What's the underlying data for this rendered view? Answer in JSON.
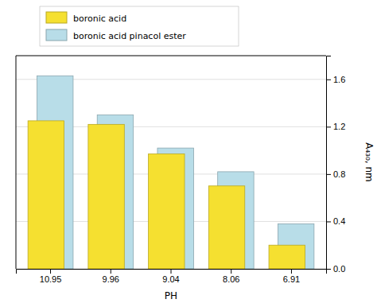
{
  "chart_data": {
    "type": "bar",
    "categories": [
      "10.95",
      "9.96",
      "9.04",
      "8.06",
      "6.91"
    ],
    "series": [
      {
        "name": "boronic acid",
        "color": "#f5e030",
        "values": [
          1.25,
          1.22,
          0.97,
          0.7,
          0.2
        ]
      },
      {
        "name": "boronic acid pinacol ester",
        "color": "#b8dde8",
        "values": [
          1.63,
          1.3,
          1.02,
          0.82,
          0.38
        ]
      }
    ],
    "xlabel": "PH",
    "ylabel": "A₄₃₀, nm",
    "ylim": [
      0.0,
      1.8
    ],
    "yticks": [
      {
        "value": 0.0,
        "label": "0.0"
      },
      0.4,
      0.8,
      1.2,
      1.6
    ],
    "grid": true,
    "legend": "upper left"
  }
}
